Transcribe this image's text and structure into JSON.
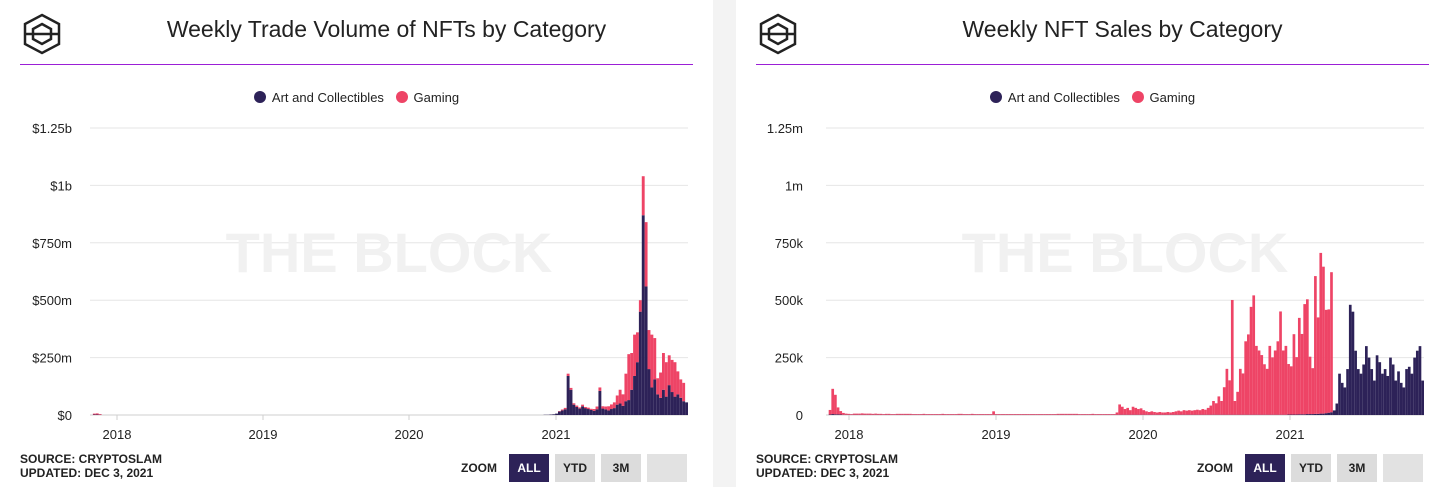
{
  "colors": {
    "art": "#2d2258",
    "gaming": "#ee4466",
    "rule": "#9b1fd6",
    "grid": "#e6e6e6"
  },
  "watermark": "THE BLOCK",
  "zoom": {
    "label": "ZOOM",
    "buttons": [
      "ALL",
      "YTD",
      "3M",
      ""
    ]
  },
  "panels": [
    {
      "title": "Weekly Trade Volume of NFTs by Category",
      "source_line1": "SOURCE: CRYPTOSLAM",
      "source_line2": "UPDATED: DEC 3, 2021",
      "legend": [
        "Art and Collectibles",
        "Gaming"
      ]
    },
    {
      "title": "Weekly NFT Sales by Category",
      "source_line1": "SOURCE: CRYPTOSLAM",
      "source_line2": "UPDATED: DEC 3, 2021",
      "legend": [
        "Art and Collectibles",
        "Gaming"
      ]
    }
  ],
  "chart_data": [
    {
      "type": "bar",
      "stacked": true,
      "x_label_ticks": [
        "2018",
        "2019",
        "2020",
        "2021"
      ],
      "y_ticks": [
        "$0",
        "$250m",
        "$500m",
        "$750m",
        "$1b",
        "$1.25b"
      ],
      "y_tick_values": [
        0,
        250,
        500,
        750,
        1000,
        1250
      ],
      "ylim": [
        0,
        1250
      ],
      "units": "$m",
      "grid": true,
      "legend_position": "top-center",
      "series": [
        {
          "name": "Art and Collectibles",
          "values": [
            0,
            2,
            2,
            1,
            0,
            0,
            0,
            0,
            0,
            0,
            0,
            0,
            0,
            0,
            0,
            0,
            0,
            0,
            0,
            0,
            0,
            0,
            0,
            0,
            0,
            0,
            0,
            0,
            0,
            0,
            0,
            0,
            0,
            0,
            0,
            0,
            0,
            0,
            0,
            0,
            0,
            0,
            0,
            0,
            0,
            0,
            0,
            0,
            0,
            0,
            0,
            0,
            0,
            0,
            0,
            0,
            0,
            0,
            0,
            0,
            0,
            0,
            0,
            0,
            0,
            0,
            0,
            0,
            0,
            0,
            0,
            0,
            0,
            0,
            0,
            0,
            0,
            0,
            0,
            0,
            0,
            0,
            0,
            0,
            0,
            0,
            0,
            0,
            0,
            0,
            0,
            0,
            0,
            0,
            0,
            0,
            0,
            0,
            0,
            0,
            0,
            0,
            0,
            0,
            0,
            0,
            0,
            0,
            0,
            0,
            0,
            0,
            0,
            0,
            0,
            0,
            0,
            0,
            0,
            0,
            0,
            0,
            0,
            0,
            0,
            0,
            0,
            0,
            0,
            0,
            0,
            0,
            0,
            0,
            0,
            0,
            0,
            0,
            0,
            0,
            0,
            0,
            0,
            0,
            0,
            0,
            0,
            0,
            0,
            0,
            0,
            0,
            0,
            0,
            0,
            0,
            0,
            1,
            1,
            2,
            3,
            6,
            15,
            20,
            25,
            170,
            110,
            45,
            35,
            28,
            38,
            30,
            26,
            22,
            18,
            25,
            105,
            28,
            25,
            20,
            26,
            30,
            45,
            50,
            40,
            60,
            65,
            110,
            170,
            230,
            450,
            870,
            560,
            200,
            120,
            155,
            90,
            75,
            110,
            80,
            130,
            100,
            80,
            90,
            75,
            60,
            55
          ]
        },
        {
          "name": "Gaming",
          "values": [
            0,
            4,
            5,
            3,
            0,
            0,
            0,
            0,
            0,
            0,
            0,
            0,
            0,
            0,
            0,
            0,
            0,
            0,
            0,
            0,
            0,
            0,
            0,
            0,
            0,
            0,
            0,
            0,
            0,
            0,
            0,
            0,
            0,
            0,
            0,
            0,
            0,
            0,
            0,
            0,
            0,
            0,
            0,
            0,
            0,
            0,
            0,
            0,
            0,
            0,
            0,
            0,
            0,
            0,
            0,
            0,
            0,
            0,
            0,
            0,
            0,
            0,
            0,
            0,
            0,
            0,
            0,
            0,
            0,
            0,
            0,
            0,
            0,
            0,
            0,
            0,
            0,
            0,
            0,
            0,
            0,
            0,
            0,
            0,
            0,
            0,
            0,
            0,
            0,
            0,
            0,
            0,
            0,
            0,
            0,
            0,
            0,
            0,
            0,
            0,
            0,
            0,
            0,
            0,
            0,
            0,
            0,
            0,
            0,
            0,
            0,
            0,
            0,
            0,
            0,
            0,
            0,
            0,
            0,
            0,
            0,
            0,
            0,
            0,
            0,
            0,
            0,
            0,
            0,
            0,
            0,
            0,
            0,
            0,
            0,
            0,
            0,
            0,
            0,
            0,
            0,
            0,
            0,
            0,
            0,
            0,
            0,
            0,
            0,
            0,
            0,
            0,
            0,
            0,
            0,
            0,
            0,
            0,
            0,
            0,
            0,
            0,
            2,
            4,
            6,
            10,
            8,
            6,
            6,
            5,
            7,
            5,
            6,
            5,
            8,
            12,
            15,
            10,
            12,
            18,
            20,
            25,
            40,
            60,
            50,
            120,
            200,
            160,
            180,
            130,
            50,
            170,
            280,
            170,
            230,
            180,
            70,
            110,
            160,
            150,
            130,
            140,
            150,
            100,
            80,
            80
          ]
        }
      ]
    },
    {
      "type": "bar",
      "stacked": true,
      "x_label_ticks": [
        "2018",
        "2019",
        "2020",
        "2021"
      ],
      "y_ticks": [
        "0",
        "250k",
        "500k",
        "750k",
        "1m",
        "1.25m"
      ],
      "y_tick_values": [
        0,
        250,
        500,
        750,
        1000,
        1250
      ],
      "ylim": [
        0,
        1250
      ],
      "units": "thousands",
      "grid": true,
      "legend_position": "top-center",
      "series": [
        {
          "name": "Art and Collectibles",
          "values": [
            0,
            2,
            4,
            3,
            3,
            2,
            1,
            1,
            1,
            1,
            1,
            1,
            1,
            1,
            1,
            1,
            1,
            1,
            1,
            1,
            1,
            1,
            1,
            1,
            1,
            1,
            1,
            1,
            1,
            1,
            1,
            1,
            1,
            1,
            1,
            1,
            1,
            1,
            1,
            1,
            1,
            1,
            1,
            1,
            1,
            1,
            1,
            1,
            1,
            1,
            1,
            1,
            1,
            1,
            1,
            1,
            1,
            1,
            1,
            1,
            1,
            1,
            1,
            1,
            1,
            1,
            1,
            1,
            1,
            1,
            1,
            1,
            1,
            1,
            1,
            1,
            1,
            1,
            1,
            1,
            1,
            1,
            1,
            1,
            1,
            1,
            1,
            1,
            1,
            1,
            1,
            1,
            1,
            1,
            1,
            1,
            1,
            1,
            1,
            1,
            1,
            1,
            1,
            1,
            1,
            1,
            1,
            1,
            1,
            1,
            1,
            1,
            1,
            1,
            1,
            1,
            1,
            1,
            1,
            1,
            1,
            1,
            1,
            1,
            1,
            1,
            1,
            1,
            1,
            1,
            1,
            1,
            1,
            1,
            1,
            1,
            1,
            1,
            1,
            1,
            1,
            1,
            1,
            1,
            1,
            1,
            1,
            1,
            1,
            1,
            1,
            1,
            1,
            1,
            1,
            1,
            1,
            1,
            1,
            1,
            1,
            1,
            1,
            1,
            1,
            1,
            1,
            1,
            1,
            1,
            1,
            1,
            2,
            2,
            2,
            2,
            3,
            3,
            3,
            4,
            4,
            4,
            5,
            5,
            6,
            6,
            8,
            10,
            12,
            20,
            50,
            180,
            140,
            120,
            200,
            480,
            450,
            280,
            200,
            180,
            220,
            300,
            250,
            200,
            150,
            260,
            230,
            180,
            200,
            170,
            250,
            220,
            150,
            190,
            140,
            120,
            200,
            210,
            180,
            250,
            280,
            300,
            150
          ]
        },
        {
          "name": "Gaming",
          "values": [
            0,
            20,
            110,
            85,
            30,
            15,
            8,
            5,
            4,
            3,
            5,
            5,
            5,
            6,
            5,
            5,
            5,
            4,
            5,
            4,
            4,
            3,
            4,
            4,
            3,
            3,
            4,
            4,
            4,
            4,
            4,
            4,
            3,
            3,
            3,
            3,
            4,
            3,
            3,
            3,
            3,
            3,
            3,
            4,
            3,
            3,
            3,
            3,
            3,
            4,
            4,
            3,
            3,
            3,
            4,
            3,
            3,
            3,
            3,
            3,
            3,
            3,
            15,
            3,
            3,
            3,
            3,
            3,
            3,
            3,
            3,
            3,
            3,
            3,
            3,
            3,
            3,
            3,
            3,
            3,
            3,
            3,
            3,
            3,
            3,
            3,
            4,
            4,
            4,
            4,
            4,
            4,
            4,
            4,
            3,
            3,
            3,
            3,
            3,
            4,
            3,
            3,
            3,
            3,
            3,
            3,
            3,
            3,
            10,
            45,
            35,
            25,
            30,
            20,
            35,
            30,
            25,
            28,
            20,
            15,
            12,
            15,
            12,
            10,
            12,
            10,
            10,
            12,
            10,
            12,
            15,
            18,
            15,
            20,
            18,
            20,
            18,
            20,
            22,
            20,
            25,
            22,
            30,
            40,
            60,
            50,
            80,
            60,
            120,
            200,
            150,
            500,
            60,
            100,
            200,
            180,
            320,
            350,
            470,
            520,
            300,
            280,
            260,
            220,
            200,
            300,
            250,
            280,
            320,
            450,
            280,
            300,
            220,
            210,
            350,
            250,
            420,
            350,
            480,
            500,
            250,
            200,
            600,
            420,
            700,
            640,
            450,
            450,
            610
          ]
        }
      ]
    }
  ]
}
